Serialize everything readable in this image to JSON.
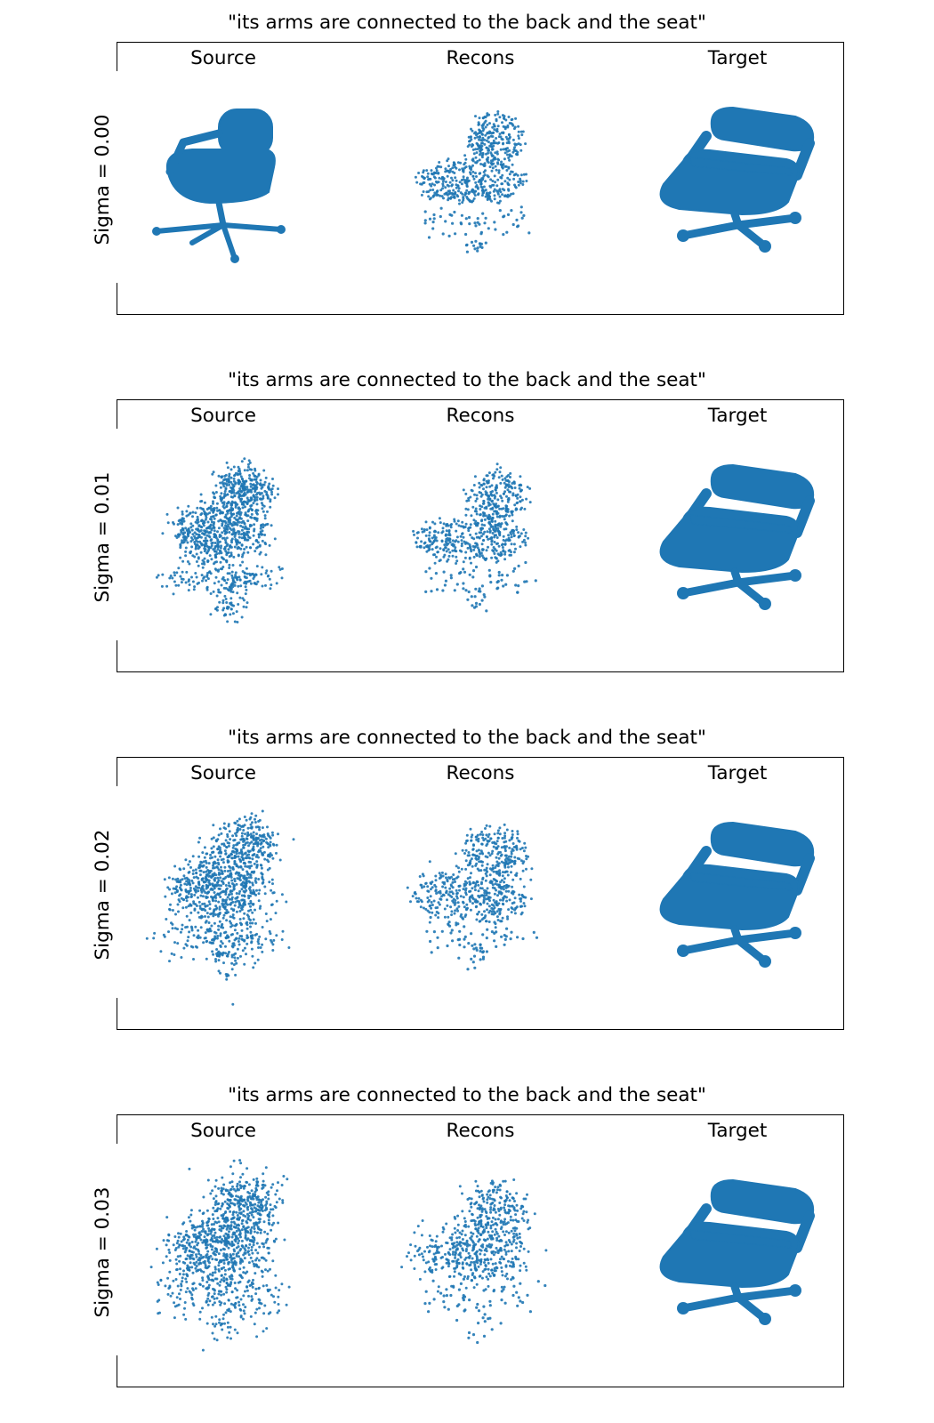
{
  "colors": {
    "points": "#1f77b4",
    "frame": "#000000"
  },
  "columns": [
    "Source",
    "Recons",
    "Target"
  ],
  "panels": [
    {
      "title": "\"its arms are connected to the back and the seat\"",
      "row_label": "Sigma = 0.00",
      "sigma": 0.0
    },
    {
      "title": "\"its arms are connected to the back and the seat\"",
      "row_label": "Sigma = 0.01",
      "sigma": 0.01
    },
    {
      "title": "\"its arms are connected to the back and the seat\"",
      "row_label": "Sigma = 0.02",
      "sigma": 0.02
    },
    {
      "title": "\"its arms are connected to the back and the seat\"",
      "row_label": "Sigma = 0.03",
      "sigma": 0.03
    }
  ]
}
